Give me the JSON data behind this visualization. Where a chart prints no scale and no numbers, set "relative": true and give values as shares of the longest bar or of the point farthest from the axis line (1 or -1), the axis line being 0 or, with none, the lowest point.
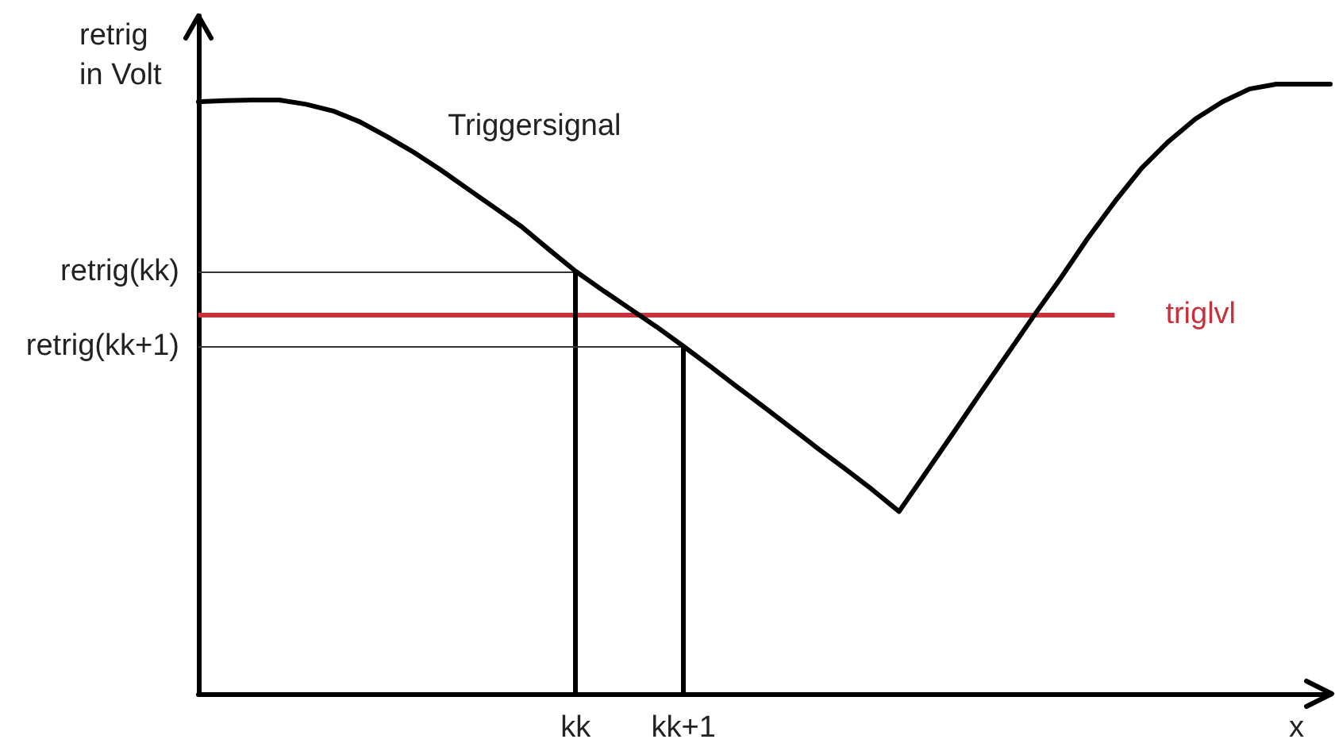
{
  "chart_data": {
    "type": "line",
    "xlabel": "x",
    "ylabel": "retrig in Volt",
    "relative": true,
    "categories": [
      null,
      null,
      null,
      null,
      null,
      null,
      null,
      null,
      null,
      null,
      null,
      null,
      null,
      null,
      "kk",
      null,
      null,
      null,
      "kk+1",
      null,
      null,
      null,
      null,
      null,
      null,
      null,
      null,
      null,
      null,
      null,
      null,
      null,
      null,
      null,
      null,
      null,
      null,
      null,
      null,
      null,
      null,
      null,
      null
    ],
    "series": [
      {
        "name": "Triggersignal",
        "color": "#000000",
        "values": [
          0.971,
          0.973,
          0.974,
          0.974,
          0.967,
          0.956,
          0.938,
          0.914,
          0.888,
          0.859,
          0.828,
          0.797,
          0.766,
          0.729,
          0.693,
          0.662,
          0.632,
          0.602,
          0.57,
          0.537,
          0.503,
          0.47,
          0.436,
          0.402,
          0.369,
          0.335,
          0.299,
          0.363,
          0.427,
          0.492,
          0.556,
          0.62,
          0.682,
          0.747,
          0.807,
          0.862,
          0.906,
          0.943,
          0.971,
          0.992,
          1,
          1,
          1
        ]
      }
    ],
    "ref_lines": [
      {
        "axis": "y",
        "value": 0.623,
        "label": "triglvl",
        "color": "#c8303c"
      }
    ],
    "annotations": [
      {
        "text": "retrig(kk)",
        "x": "kk",
        "y": 0.693
      },
      {
        "text": "retrig(kk+1)",
        "x": "kk+1",
        "y": 0.57
      }
    ]
  }
}
